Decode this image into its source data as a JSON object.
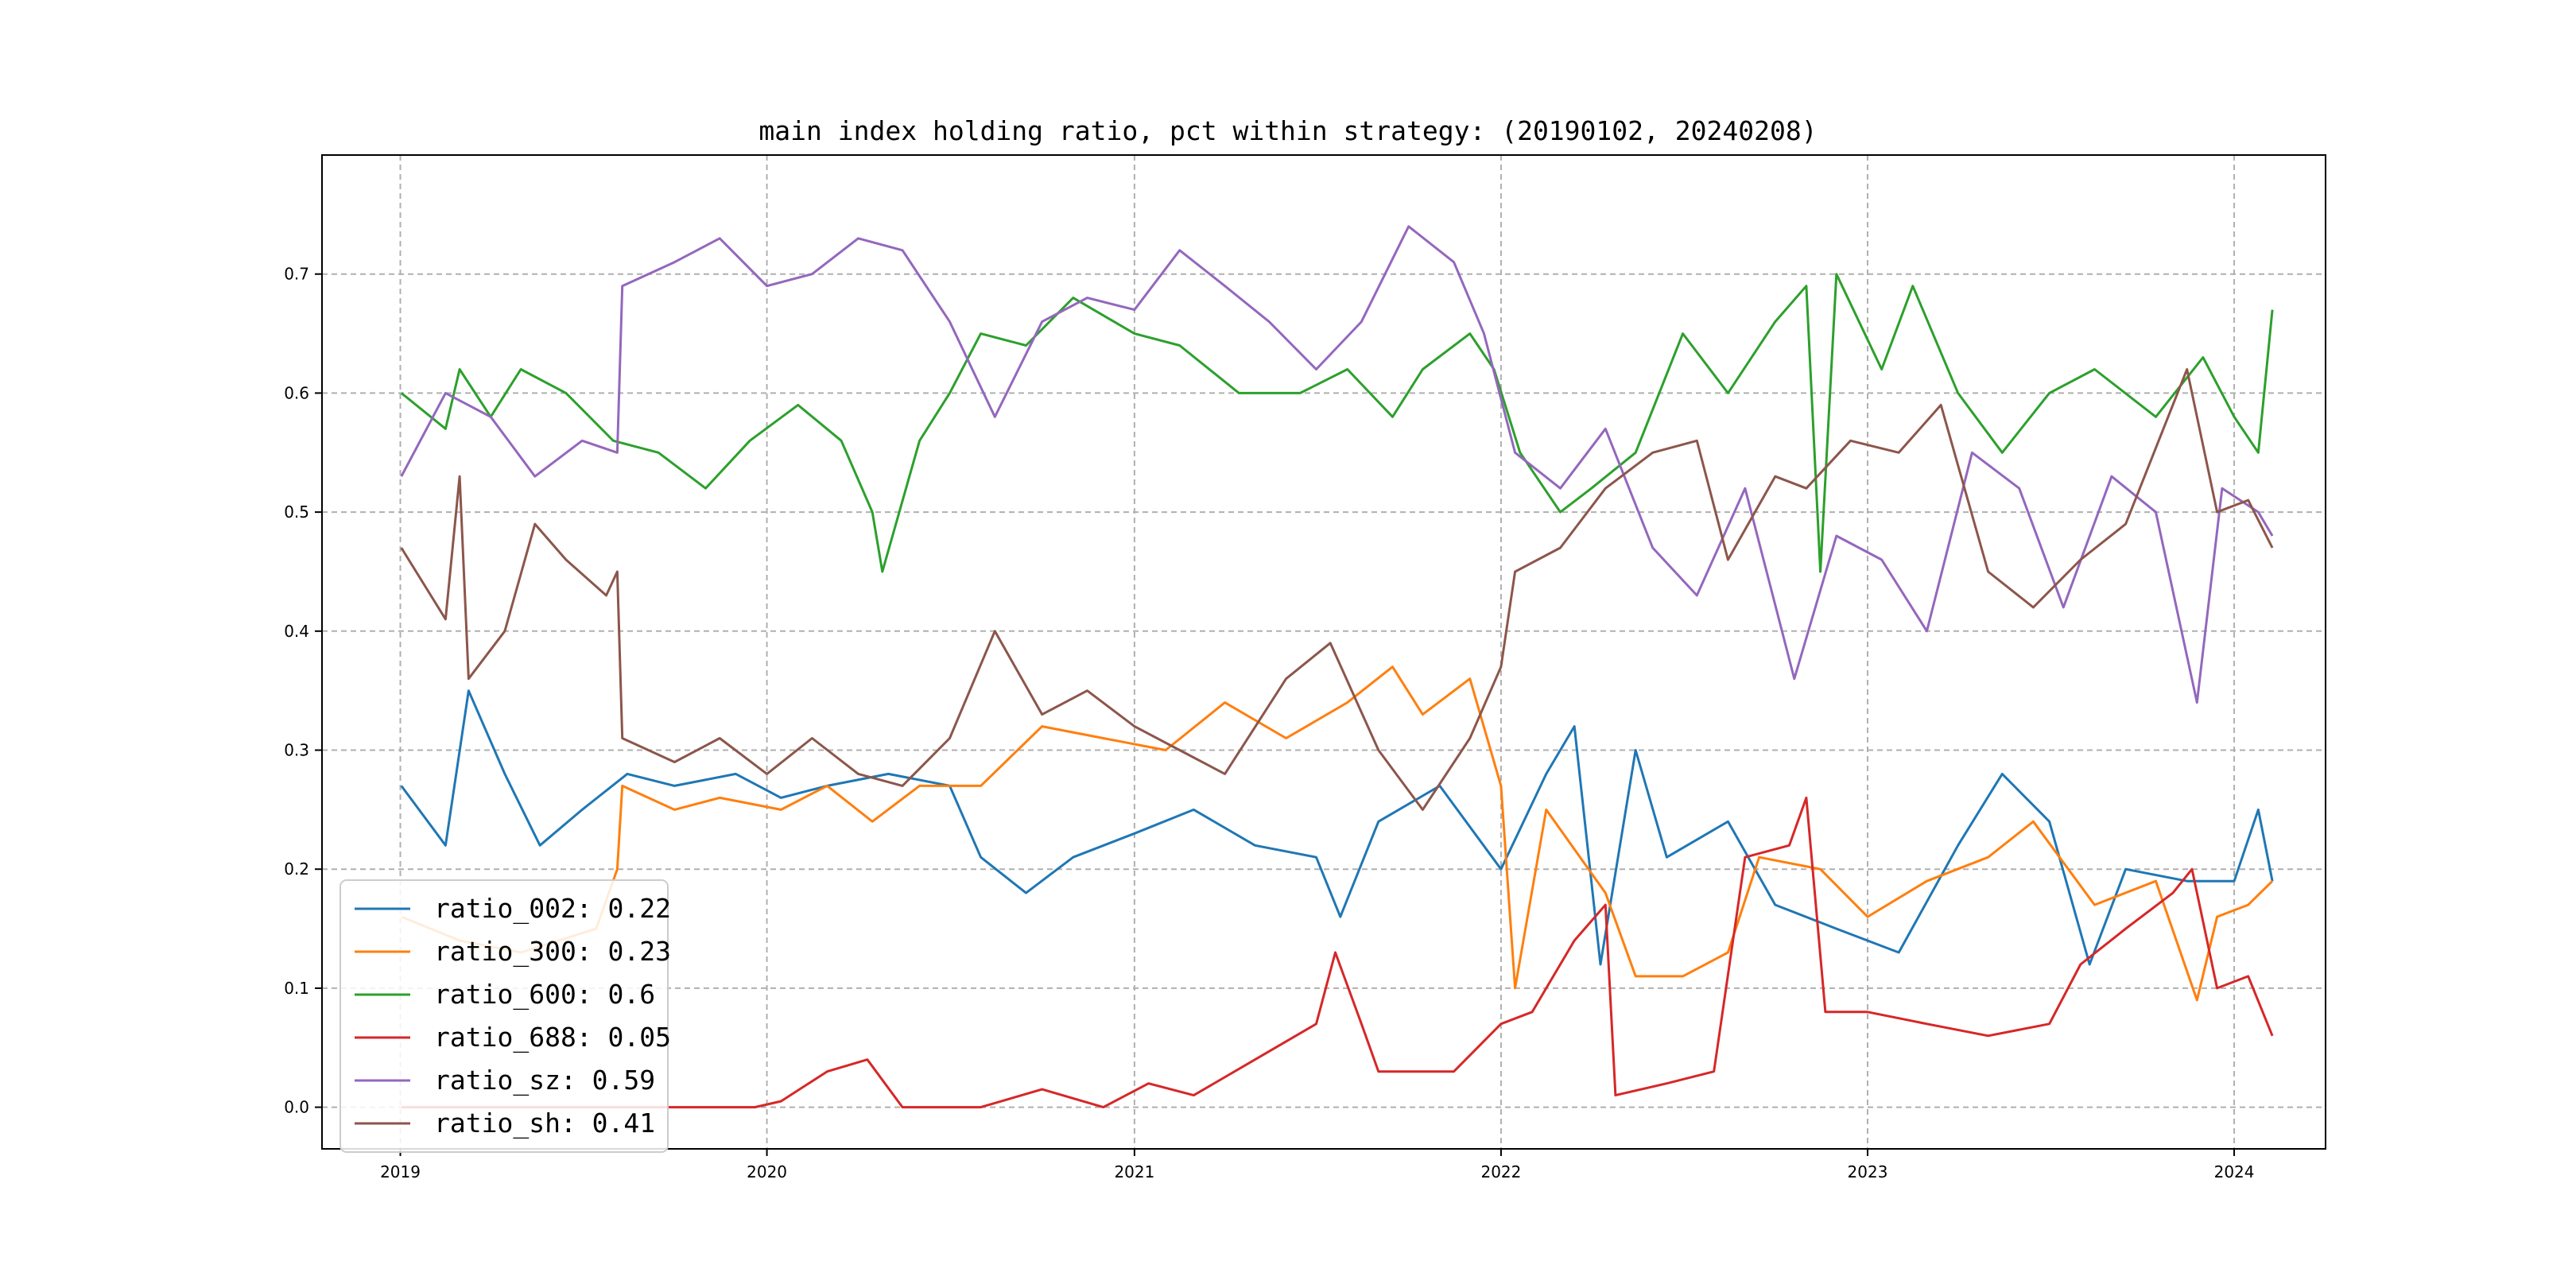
{
  "chart_data": {
    "type": "line",
    "title": "main index holding ratio, pct within strategy: (20190102, 20240208)",
    "xlabel": "",
    "ylabel": "",
    "x_start": "2019-01-02",
    "x_end": "2024-02-08",
    "xlim": [
      "2018-10-15",
      "2024-04-01"
    ],
    "ylim": [
      -0.035,
      0.8
    ],
    "xticks": [
      "2019",
      "2020",
      "2021",
      "2022",
      "2023",
      "2024"
    ],
    "yticks": [
      "0.0",
      "0.1",
      "0.2",
      "0.3",
      "0.4",
      "0.5",
      "0.6",
      "0.7"
    ],
    "grid": true,
    "legend_position": "lower-left",
    "series": [
      {
        "name": "ratio_002",
        "legend_label": "ratio_002: 0.22",
        "color": "#1f77b4",
        "points": [
          [
            "2019-01-02",
            0.27
          ],
          [
            "2019-02-15",
            0.22
          ],
          [
            "2019-03-10",
            0.35
          ],
          [
            "2019-04-15",
            0.28
          ],
          [
            "2019-05-20",
            0.22
          ],
          [
            "2019-07-01",
            0.25
          ],
          [
            "2019-08-15",
            0.28
          ],
          [
            "2019-10-01",
            0.27
          ],
          [
            "2019-12-01",
            0.28
          ],
          [
            "2020-01-15",
            0.26
          ],
          [
            "2020-03-01",
            0.27
          ],
          [
            "2020-05-01",
            0.28
          ],
          [
            "2020-07-01",
            0.27
          ],
          [
            "2020-08-01",
            0.21
          ],
          [
            "2020-09-15",
            0.18
          ],
          [
            "2020-11-01",
            0.21
          ],
          [
            "2021-01-01",
            0.23
          ],
          [
            "2021-03-01",
            0.25
          ],
          [
            "2021-05-01",
            0.22
          ],
          [
            "2021-07-01",
            0.21
          ],
          [
            "2021-07-25",
            0.16
          ],
          [
            "2021-09-01",
            0.24
          ],
          [
            "2021-11-01",
            0.27
          ],
          [
            "2022-01-01",
            0.2
          ],
          [
            "2022-02-15",
            0.28
          ],
          [
            "2022-03-15",
            0.32
          ],
          [
            "2022-04-10",
            0.12
          ],
          [
            "2022-05-15",
            0.3
          ],
          [
            "2022-06-15",
            0.21
          ],
          [
            "2022-08-15",
            0.24
          ],
          [
            "2022-10-01",
            0.17
          ],
          [
            "2022-12-01",
            0.15
          ],
          [
            "2023-02-01",
            0.13
          ],
          [
            "2023-04-01",
            0.22
          ],
          [
            "2023-05-15",
            0.28
          ],
          [
            "2023-07-01",
            0.24
          ],
          [
            "2023-08-10",
            0.12
          ],
          [
            "2023-09-15",
            0.2
          ],
          [
            "2023-11-15",
            0.19
          ],
          [
            "2024-01-01",
            0.19
          ],
          [
            "2024-01-25",
            0.25
          ],
          [
            "2024-02-08",
            0.19
          ]
        ]
      },
      {
        "name": "ratio_300",
        "legend_label": "ratio_300: 0.23",
        "color": "#ff7f0e",
        "points": [
          [
            "2019-01-02",
            0.16
          ],
          [
            "2019-03-01",
            0.14
          ],
          [
            "2019-05-01",
            0.13
          ],
          [
            "2019-07-15",
            0.15
          ],
          [
            "2019-08-05",
            0.2
          ],
          [
            "2019-08-10",
            0.27
          ],
          [
            "2019-10-01",
            0.25
          ],
          [
            "2019-11-15",
            0.26
          ],
          [
            "2020-01-15",
            0.25
          ],
          [
            "2020-03-01",
            0.27
          ],
          [
            "2020-04-15",
            0.24
          ],
          [
            "2020-06-01",
            0.27
          ],
          [
            "2020-08-01",
            0.27
          ],
          [
            "2020-10-01",
            0.32
          ],
          [
            "2020-12-01",
            0.31
          ],
          [
            "2021-02-01",
            0.3
          ],
          [
            "2021-04-01",
            0.34
          ],
          [
            "2021-06-01",
            0.31
          ],
          [
            "2021-08-01",
            0.34
          ],
          [
            "2021-09-15",
            0.37
          ],
          [
            "2021-10-15",
            0.33
          ],
          [
            "2021-12-01",
            0.36
          ],
          [
            "2022-01-01",
            0.27
          ],
          [
            "2022-01-15",
            0.1
          ],
          [
            "2022-02-15",
            0.25
          ],
          [
            "2022-04-15",
            0.18
          ],
          [
            "2022-05-15",
            0.11
          ],
          [
            "2022-07-01",
            0.11
          ],
          [
            "2022-08-15",
            0.13
          ],
          [
            "2022-09-15",
            0.21
          ],
          [
            "2022-11-15",
            0.2
          ],
          [
            "2023-01-01",
            0.16
          ],
          [
            "2023-03-01",
            0.19
          ],
          [
            "2023-05-01",
            0.21
          ],
          [
            "2023-06-15",
            0.24
          ],
          [
            "2023-08-15",
            0.17
          ],
          [
            "2023-10-15",
            0.19
          ],
          [
            "2023-11-25",
            0.09
          ],
          [
            "2023-12-15",
            0.16
          ],
          [
            "2024-01-15",
            0.17
          ],
          [
            "2024-02-08",
            0.19
          ]
        ]
      },
      {
        "name": "ratio_600",
        "legend_label": "ratio_600: 0.6",
        "color": "#2ca02c",
        "points": [
          [
            "2019-01-02",
            0.6
          ],
          [
            "2019-02-15",
            0.57
          ],
          [
            "2019-03-01",
            0.62
          ],
          [
            "2019-04-01",
            0.58
          ],
          [
            "2019-05-01",
            0.62
          ],
          [
            "2019-06-15",
            0.6
          ],
          [
            "2019-08-01",
            0.56
          ],
          [
            "2019-09-15",
            0.55
          ],
          [
            "2019-11-01",
            0.52
          ],
          [
            "2019-12-15",
            0.56
          ],
          [
            "2020-02-01",
            0.59
          ],
          [
            "2020-03-15",
            0.56
          ],
          [
            "2020-04-15",
            0.5
          ],
          [
            "2020-04-25",
            0.45
          ],
          [
            "2020-06-01",
            0.56
          ],
          [
            "2020-07-01",
            0.6
          ],
          [
            "2020-08-01",
            0.65
          ],
          [
            "2020-09-15",
            0.64
          ],
          [
            "2020-11-01",
            0.68
          ],
          [
            "2021-01-01",
            0.65
          ],
          [
            "2021-02-15",
            0.64
          ],
          [
            "2021-04-15",
            0.6
          ],
          [
            "2021-06-15",
            0.6
          ],
          [
            "2021-08-01",
            0.62
          ],
          [
            "2021-09-15",
            0.58
          ],
          [
            "2021-10-15",
            0.62
          ],
          [
            "2021-12-01",
            0.65
          ],
          [
            "2021-12-25",
            0.62
          ],
          [
            "2022-01-20",
            0.55
          ],
          [
            "2022-03-01",
            0.5
          ],
          [
            "2022-04-01",
            0.52
          ],
          [
            "2022-05-15",
            0.55
          ],
          [
            "2022-07-01",
            0.65
          ],
          [
            "2022-08-15",
            0.6
          ],
          [
            "2022-10-01",
            0.66
          ],
          [
            "2022-11-01",
            0.69
          ],
          [
            "2022-11-15",
            0.45
          ],
          [
            "2022-12-01",
            0.7
          ],
          [
            "2023-01-15",
            0.62
          ],
          [
            "2023-02-15",
            0.69
          ],
          [
            "2023-04-01",
            0.6
          ],
          [
            "2023-05-15",
            0.55
          ],
          [
            "2023-07-01",
            0.6
          ],
          [
            "2023-08-15",
            0.62
          ],
          [
            "2023-10-15",
            0.58
          ],
          [
            "2023-12-01",
            0.63
          ],
          [
            "2024-01-01",
            0.58
          ],
          [
            "2024-01-25",
            0.55
          ],
          [
            "2024-02-08",
            0.67
          ]
        ]
      },
      {
        "name": "ratio_688",
        "legend_label": "ratio_688: 0.05",
        "color": "#d62728",
        "points": [
          [
            "2019-01-02",
            0.0
          ],
          [
            "2019-07-15",
            0.0
          ],
          [
            "2019-12-20",
            0.0
          ],
          [
            "2020-01-15",
            0.005
          ],
          [
            "2020-03-01",
            0.03
          ],
          [
            "2020-04-10",
            0.04
          ],
          [
            "2020-05-15",
            0.0
          ],
          [
            "2020-08-01",
            0.0
          ],
          [
            "2020-10-01",
            0.015
          ],
          [
            "2020-12-01",
            0.0
          ],
          [
            "2021-01-15",
            0.02
          ],
          [
            "2021-03-01",
            0.01
          ],
          [
            "2021-05-01",
            0.04
          ],
          [
            "2021-07-01",
            0.07
          ],
          [
            "2021-07-20",
            0.13
          ],
          [
            "2021-08-15",
            0.07
          ],
          [
            "2021-09-01",
            0.03
          ],
          [
            "2021-11-15",
            0.03
          ],
          [
            "2022-01-01",
            0.07
          ],
          [
            "2022-02-01",
            0.08
          ],
          [
            "2022-03-15",
            0.14
          ],
          [
            "2022-04-15",
            0.17
          ],
          [
            "2022-04-25",
            0.01
          ],
          [
            "2022-06-15",
            0.02
          ],
          [
            "2022-08-01",
            0.03
          ],
          [
            "2022-09-01",
            0.21
          ],
          [
            "2022-10-15",
            0.22
          ],
          [
            "2022-11-01",
            0.26
          ],
          [
            "2022-11-20",
            0.08
          ],
          [
            "2023-01-01",
            0.08
          ],
          [
            "2023-03-01",
            0.07
          ],
          [
            "2023-05-01",
            0.06
          ],
          [
            "2023-07-01",
            0.07
          ],
          [
            "2023-08-01",
            0.12
          ],
          [
            "2023-09-15",
            0.15
          ],
          [
            "2023-11-01",
            0.18
          ],
          [
            "2023-11-20",
            0.2
          ],
          [
            "2023-12-15",
            0.1
          ],
          [
            "2024-01-15",
            0.11
          ],
          [
            "2024-02-08",
            0.06
          ]
        ]
      },
      {
        "name": "ratio_sz",
        "legend_label": "ratio_sz: 0.59",
        "color": "#9467bd",
        "points": [
          [
            "2019-01-02",
            0.53
          ],
          [
            "2019-02-15",
            0.6
          ],
          [
            "2019-04-01",
            0.58
          ],
          [
            "2019-05-15",
            0.53
          ],
          [
            "2019-07-01",
            0.56
          ],
          [
            "2019-08-05",
            0.55
          ],
          [
            "2019-08-10",
            0.69
          ],
          [
            "2019-10-01",
            0.71
          ],
          [
            "2019-11-15",
            0.73
          ],
          [
            "2020-01-01",
            0.69
          ],
          [
            "2020-02-15",
            0.7
          ],
          [
            "2020-04-01",
            0.73
          ],
          [
            "2020-05-15",
            0.72
          ],
          [
            "2020-07-01",
            0.66
          ],
          [
            "2020-08-15",
            0.58
          ],
          [
            "2020-10-01",
            0.66
          ],
          [
            "2020-11-15",
            0.68
          ],
          [
            "2021-01-01",
            0.67
          ],
          [
            "2021-02-15",
            0.72
          ],
          [
            "2021-04-01",
            0.69
          ],
          [
            "2021-05-15",
            0.66
          ],
          [
            "2021-07-01",
            0.62
          ],
          [
            "2021-08-15",
            0.66
          ],
          [
            "2021-10-01",
            0.74
          ],
          [
            "2021-11-15",
            0.71
          ],
          [
            "2021-12-15",
            0.65
          ],
          [
            "2022-01-15",
            0.55
          ],
          [
            "2022-03-01",
            0.52
          ],
          [
            "2022-04-15",
            0.57
          ],
          [
            "2022-06-01",
            0.47
          ],
          [
            "2022-07-15",
            0.43
          ],
          [
            "2022-09-01",
            0.52
          ],
          [
            "2022-10-20",
            0.36
          ],
          [
            "2022-12-01",
            0.48
          ],
          [
            "2023-01-15",
            0.46
          ],
          [
            "2023-03-01",
            0.4
          ],
          [
            "2023-04-15",
            0.55
          ],
          [
            "2023-06-01",
            0.52
          ],
          [
            "2023-07-15",
            0.42
          ],
          [
            "2023-09-01",
            0.53
          ],
          [
            "2023-10-15",
            0.5
          ],
          [
            "2023-11-25",
            0.34
          ],
          [
            "2023-12-20",
            0.52
          ],
          [
            "2024-01-25",
            0.5
          ],
          [
            "2024-02-08",
            0.48
          ]
        ]
      },
      {
        "name": "ratio_sh",
        "legend_label": "ratio_sh: 0.41",
        "color": "#8c564b",
        "points": [
          [
            "2019-01-02",
            0.47
          ],
          [
            "2019-02-15",
            0.41
          ],
          [
            "2019-03-01",
            0.53
          ],
          [
            "2019-03-10",
            0.36
          ],
          [
            "2019-04-15",
            0.4
          ],
          [
            "2019-05-15",
            0.49
          ],
          [
            "2019-06-15",
            0.46
          ],
          [
            "2019-07-25",
            0.43
          ],
          [
            "2019-08-05",
            0.45
          ],
          [
            "2019-08-10",
            0.31
          ],
          [
            "2019-10-01",
            0.29
          ],
          [
            "2019-11-15",
            0.31
          ],
          [
            "2020-01-01",
            0.28
          ],
          [
            "2020-02-15",
            0.31
          ],
          [
            "2020-04-01",
            0.28
          ],
          [
            "2020-05-15",
            0.27
          ],
          [
            "2020-07-01",
            0.31
          ],
          [
            "2020-08-15",
            0.4
          ],
          [
            "2020-10-01",
            0.33
          ],
          [
            "2020-11-15",
            0.35
          ],
          [
            "2021-01-01",
            0.32
          ],
          [
            "2021-02-15",
            0.3
          ],
          [
            "2021-04-01",
            0.28
          ],
          [
            "2021-06-01",
            0.36
          ],
          [
            "2021-07-15",
            0.39
          ],
          [
            "2021-09-01",
            0.3
          ],
          [
            "2021-10-15",
            0.25
          ],
          [
            "2021-12-01",
            0.31
          ],
          [
            "2022-01-01",
            0.37
          ],
          [
            "2022-01-15",
            0.45
          ],
          [
            "2022-03-01",
            0.47
          ],
          [
            "2022-04-15",
            0.52
          ],
          [
            "2022-06-01",
            0.55
          ],
          [
            "2022-07-15",
            0.56
          ],
          [
            "2022-08-15",
            0.46
          ],
          [
            "2022-10-01",
            0.53
          ],
          [
            "2022-11-01",
            0.52
          ],
          [
            "2022-12-15",
            0.56
          ],
          [
            "2023-02-01",
            0.55
          ],
          [
            "2023-03-15",
            0.59
          ],
          [
            "2023-05-01",
            0.45
          ],
          [
            "2023-06-15",
            0.42
          ],
          [
            "2023-08-01",
            0.46
          ],
          [
            "2023-09-15",
            0.49
          ],
          [
            "2023-11-15",
            0.62
          ],
          [
            "2023-12-15",
            0.5
          ],
          [
            "2024-01-15",
            0.51
          ],
          [
            "2024-02-08",
            0.47
          ]
        ]
      }
    ]
  }
}
